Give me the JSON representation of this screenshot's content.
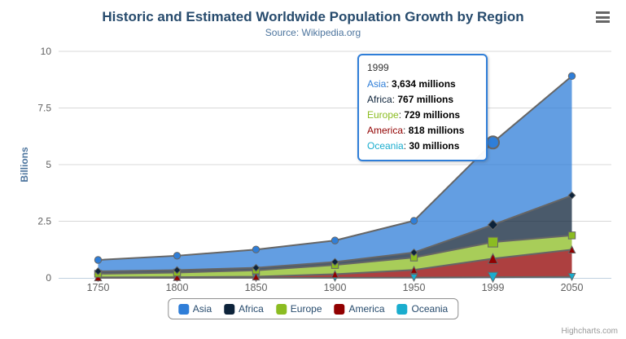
{
  "chart_data": {
    "type": "area",
    "stacking": "normal",
    "title": "Historic and Estimated Worldwide Population Growth by Region",
    "subtitle": "Source: Wikipedia.org",
    "categories": [
      "1750",
      "1800",
      "1850",
      "1900",
      "1950",
      "1999",
      "2050"
    ],
    "series": [
      {
        "name": "Asia",
        "color": "#2f7ed8",
        "marker": "circle",
        "values": [
          502,
          635,
          809,
          947,
          1402,
          3634,
          5268
        ]
      },
      {
        "name": "Africa",
        "color": "#0d233a",
        "marker": "diamond",
        "values": [
          106,
          107,
          111,
          133,
          221,
          767,
          1766
        ]
      },
      {
        "name": "Europe",
        "color": "#8bbc21",
        "marker": "square",
        "values": [
          163,
          203,
          276,
          408,
          547,
          729,
          628
        ]
      },
      {
        "name": "America",
        "color": "#910000",
        "marker": "triangle",
        "values": [
          18,
          31,
          54,
          156,
          339,
          818,
          1201
        ]
      },
      {
        "name": "Oceania",
        "color": "#1aadce",
        "marker": "triangle-down",
        "values": [
          2,
          2,
          2,
          6,
          13,
          30,
          46
        ]
      }
    ],
    "values_unit": "millions",
    "ylabel": "Billions",
    "yticks": [
      0,
      2.5,
      5,
      7.5,
      10
    ],
    "ytick_labels": [
      "0",
      "2.5",
      "5",
      "7.5",
      "10"
    ],
    "ylim": [
      0,
      10
    ],
    "grid": "horizontal",
    "legend_position": "bottom-center",
    "hover_category_index": 5,
    "hover_series": "Asia",
    "styles": {
      "line_color": "#666666",
      "fill_opacity": 0.75,
      "grid_color": "#d8d8d8",
      "axis_line_color": "#c0d0e0",
      "axis_label_color": "#606060",
      "title_color": "#274b6d",
      "subtitle_color": "#4d759e",
      "legend_text_color": "#274b6d",
      "credits_color": "#999999"
    }
  },
  "tooltip": {
    "header": "1999",
    "border_color": "#2f7ed8",
    "rows": [
      {
        "name": "Asia",
        "value": "3,634 millions"
      },
      {
        "name": "Africa",
        "value": "767 millions"
      },
      {
        "name": "Europe",
        "value": "729 millions"
      },
      {
        "name": "America",
        "value": "818 millions"
      },
      {
        "name": "Oceania",
        "value": "30 millions"
      }
    ]
  },
  "credits": {
    "text": "Highcharts.com"
  }
}
